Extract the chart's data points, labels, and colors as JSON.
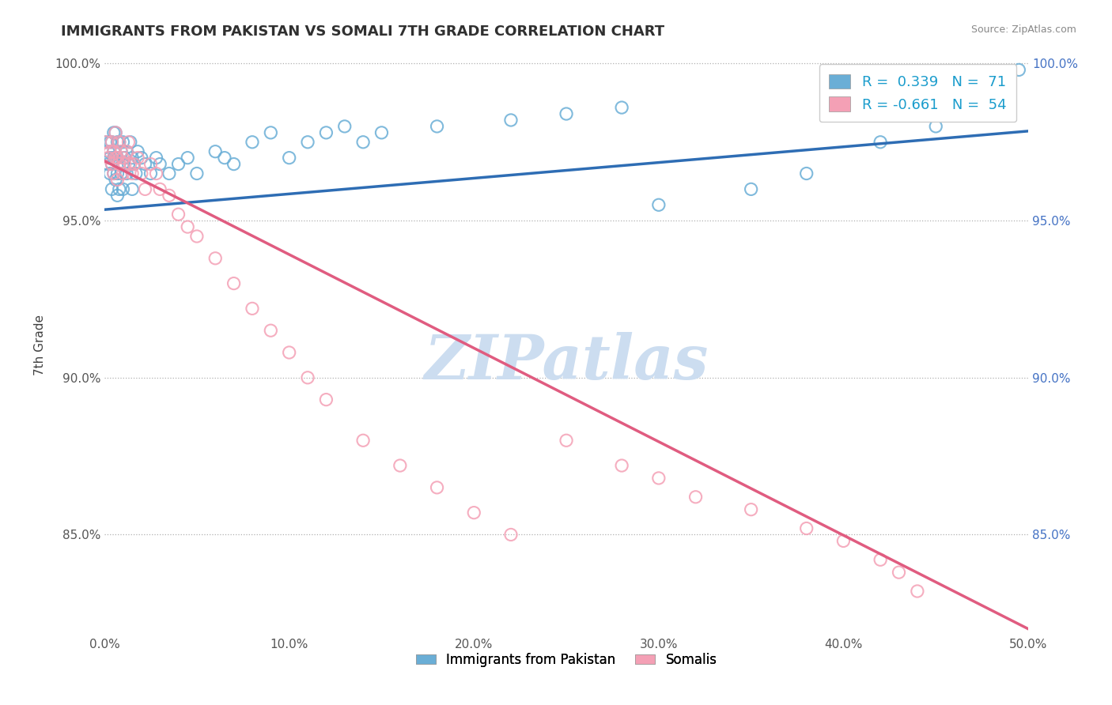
{
  "title": "IMMIGRANTS FROM PAKISTAN VS SOMALI 7TH GRADE CORRELATION CHART",
  "source_text": "Source: ZipAtlas.com",
  "ylabel": "7th Grade",
  "xlim": [
    0.0,
    0.5
  ],
  "ylim": [
    0.818,
    1.003
  ],
  "xtick_vals": [
    0.0,
    0.1,
    0.2,
    0.3,
    0.4,
    0.5
  ],
  "xtick_labels": [
    "0.0%",
    "10.0%",
    "20.0%",
    "30.0%",
    "40.0%",
    "50.0%"
  ],
  "ytick_vals": [
    0.85,
    0.9,
    0.95,
    1.0
  ],
  "ytick_labels": [
    "85.0%",
    "90.0%",
    "95.0%",
    "100.0%"
  ],
  "right_ytick_labels": [
    "85.0%",
    "90.0%",
    "95.0%",
    "100.0%"
  ],
  "legend_R1": "0.339",
  "legend_N1": "71",
  "legend_R2": "-0.661",
  "legend_N2": "54",
  "blue_color": "#6aaed6",
  "pink_color": "#f4a0b5",
  "blue_line_color": "#2e6db4",
  "pink_line_color": "#e05c80",
  "watermark": "ZIPatlas",
  "watermark_color": "#ccddf0",
  "blue_trend_x": [
    0.0,
    0.5
  ],
  "blue_trend_y": [
    0.9535,
    0.9785
  ],
  "pink_trend_x": [
    0.0,
    0.5
  ],
  "pink_trend_y": [
    0.969,
    0.82
  ],
  "blue_x": [
    0.001,
    0.002,
    0.002,
    0.003,
    0.003,
    0.003,
    0.004,
    0.004,
    0.004,
    0.005,
    0.005,
    0.005,
    0.005,
    0.006,
    0.006,
    0.006,
    0.007,
    0.007,
    0.007,
    0.007,
    0.008,
    0.008,
    0.008,
    0.009,
    0.009,
    0.01,
    0.01,
    0.01,
    0.011,
    0.012,
    0.012,
    0.013,
    0.014,
    0.015,
    0.015,
    0.016,
    0.017,
    0.018,
    0.02,
    0.022,
    0.025,
    0.028,
    0.03,
    0.035,
    0.04,
    0.045,
    0.05,
    0.06,
    0.065,
    0.07,
    0.08,
    0.09,
    0.1,
    0.11,
    0.12,
    0.13,
    0.14,
    0.15,
    0.18,
    0.22,
    0.25,
    0.28,
    0.3,
    0.35,
    0.38,
    0.42,
    0.45,
    0.47,
    0.48,
    0.49,
    0.495
  ],
  "blue_y": [
    0.975,
    0.968,
    0.972,
    0.965,
    0.97,
    0.975,
    0.96,
    0.968,
    0.975,
    0.965,
    0.97,
    0.972,
    0.978,
    0.963,
    0.97,
    0.978,
    0.958,
    0.965,
    0.97,
    0.975,
    0.96,
    0.968,
    0.975,
    0.965,
    0.972,
    0.96,
    0.968,
    0.975,
    0.97,
    0.965,
    0.972,
    0.968,
    0.975,
    0.96,
    0.97,
    0.968,
    0.965,
    0.972,
    0.97,
    0.968,
    0.965,
    0.97,
    0.968,
    0.965,
    0.968,
    0.97,
    0.965,
    0.972,
    0.97,
    0.968,
    0.975,
    0.978,
    0.97,
    0.975,
    0.978,
    0.98,
    0.975,
    0.978,
    0.98,
    0.982,
    0.984,
    0.986,
    0.955,
    0.96,
    0.965,
    0.975,
    0.98,
    0.985,
    0.988,
    0.99,
    0.998
  ],
  "pink_x": [
    0.001,
    0.002,
    0.003,
    0.004,
    0.004,
    0.005,
    0.005,
    0.006,
    0.006,
    0.007,
    0.007,
    0.008,
    0.008,
    0.009,
    0.01,
    0.01,
    0.011,
    0.012,
    0.013,
    0.014,
    0.015,
    0.016,
    0.018,
    0.02,
    0.022,
    0.025,
    0.028,
    0.03,
    0.035,
    0.04,
    0.045,
    0.05,
    0.06,
    0.07,
    0.08,
    0.09,
    0.1,
    0.11,
    0.12,
    0.14,
    0.16,
    0.18,
    0.2,
    0.22,
    0.25,
    0.28,
    0.3,
    0.32,
    0.35,
    0.38,
    0.4,
    0.42,
    0.43,
    0.44
  ],
  "pink_y": [
    0.975,
    0.97,
    0.972,
    0.968,
    0.975,
    0.965,
    0.972,
    0.97,
    0.978,
    0.963,
    0.97,
    0.968,
    0.975,
    0.972,
    0.965,
    0.97,
    0.968,
    0.972,
    0.975,
    0.968,
    0.965,
    0.968,
    0.97,
    0.965,
    0.96,
    0.968,
    0.965,
    0.96,
    0.958,
    0.952,
    0.948,
    0.945,
    0.938,
    0.93,
    0.922,
    0.915,
    0.908,
    0.9,
    0.893,
    0.88,
    0.872,
    0.865,
    0.857,
    0.85,
    0.88,
    0.872,
    0.868,
    0.862,
    0.858,
    0.852,
    0.848,
    0.842,
    0.838,
    0.832
  ]
}
